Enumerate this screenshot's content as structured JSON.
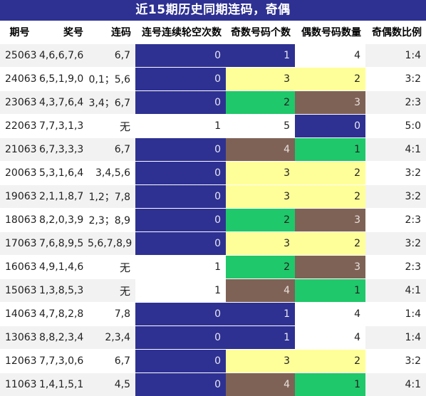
{
  "title": "近15期历史同期连码，奇偶",
  "columns": [
    "期号",
    "奖号",
    "连码",
    "连号连续轮空次数",
    "奇数号码个数",
    "偶数号码数量",
    "奇偶数比例"
  ],
  "colors": {
    "blue": "#2e3192",
    "yellow": "#ffff99",
    "green": "#1fc86a",
    "brown": "#7f6256",
    "white": "#ffffff",
    "stripe": "#f2f2f2"
  },
  "rows": [
    {
      "issue": "25063",
      "numbers": "4,6,6,7,6",
      "lianma": "6,7",
      "gap": "0",
      "odd": "1",
      "even": "4",
      "ratio": "1:4",
      "gap_color": "blue",
      "odd_color": "blue",
      "even_color": "white"
    },
    {
      "issue": "24063",
      "numbers": "6,5,1,9,0",
      "lianma": "0,1；5,6",
      "gap": "0",
      "odd": "3",
      "even": "2",
      "ratio": "3:2",
      "gap_color": "blue",
      "odd_color": "yellow",
      "even_color": "yellow"
    },
    {
      "issue": "23063",
      "numbers": "4,3,7,6,4",
      "lianma": "3,4；6,7",
      "gap": "0",
      "odd": "2",
      "even": "3",
      "ratio": "2:3",
      "gap_color": "blue",
      "odd_color": "green",
      "even_color": "brown"
    },
    {
      "issue": "22063",
      "numbers": "7,7,3,1,3",
      "lianma": "无",
      "gap": "1",
      "odd": "5",
      "even": "0",
      "ratio": "5:0",
      "gap_color": "white",
      "odd_color": "white",
      "even_color": "blue"
    },
    {
      "issue": "21063",
      "numbers": "6,7,3,3,3",
      "lianma": "6,7",
      "gap": "0",
      "odd": "4",
      "even": "1",
      "ratio": "4:1",
      "gap_color": "blue",
      "odd_color": "brown",
      "even_color": "green"
    },
    {
      "issue": "20063",
      "numbers": "5,3,1,6,4",
      "lianma": "3,4,5,6",
      "gap": "0",
      "odd": "3",
      "even": "2",
      "ratio": "3:2",
      "gap_color": "blue",
      "odd_color": "yellow",
      "even_color": "yellow"
    },
    {
      "issue": "19063",
      "numbers": "2,1,1,8,7",
      "lianma": "1,2；7,8",
      "gap": "0",
      "odd": "3",
      "even": "2",
      "ratio": "3:2",
      "gap_color": "blue",
      "odd_color": "yellow",
      "even_color": "yellow"
    },
    {
      "issue": "18063",
      "numbers": "8,2,0,3,9",
      "lianma": "2,3；8,9",
      "gap": "0",
      "odd": "2",
      "even": "3",
      "ratio": "2:3",
      "gap_color": "blue",
      "odd_color": "green",
      "even_color": "brown"
    },
    {
      "issue": "17063",
      "numbers": "7,6,8,9,5",
      "lianma": "5,6,7,8,9",
      "gap": "0",
      "odd": "3",
      "even": "2",
      "ratio": "3:2",
      "gap_color": "blue",
      "odd_color": "yellow",
      "even_color": "yellow"
    },
    {
      "issue": "16063",
      "numbers": "4,9,1,4,6",
      "lianma": "无",
      "gap": "1",
      "odd": "2",
      "even": "3",
      "ratio": "2:3",
      "gap_color": "white",
      "odd_color": "green",
      "even_color": "brown"
    },
    {
      "issue": "15063",
      "numbers": "1,3,8,5,3",
      "lianma": "无",
      "gap": "1",
      "odd": "4",
      "even": "1",
      "ratio": "4:1",
      "gap_color": "white",
      "odd_color": "brown",
      "even_color": "green"
    },
    {
      "issue": "14063",
      "numbers": "4,7,8,2,8",
      "lianma": "7,8",
      "gap": "0",
      "odd": "1",
      "even": "4",
      "ratio": "1:4",
      "gap_color": "blue",
      "odd_color": "blue",
      "even_color": "white"
    },
    {
      "issue": "13063",
      "numbers": "8,8,2,3,4",
      "lianma": "2,3,4",
      "gap": "0",
      "odd": "1",
      "even": "4",
      "ratio": "1:4",
      "gap_color": "blue",
      "odd_color": "blue",
      "even_color": "white"
    },
    {
      "issue": "12063",
      "numbers": "7,7,3,0,6",
      "lianma": "6,7",
      "gap": "0",
      "odd": "3",
      "even": "2",
      "ratio": "3:2",
      "gap_color": "blue",
      "odd_color": "yellow",
      "even_color": "yellow"
    },
    {
      "issue": "11063",
      "numbers": "1,4,1,5,1",
      "lianma": "4,5",
      "gap": "0",
      "odd": "4",
      "even": "1",
      "ratio": "4:1",
      "gap_color": "blue",
      "odd_color": "brown",
      "even_color": "green"
    }
  ]
}
